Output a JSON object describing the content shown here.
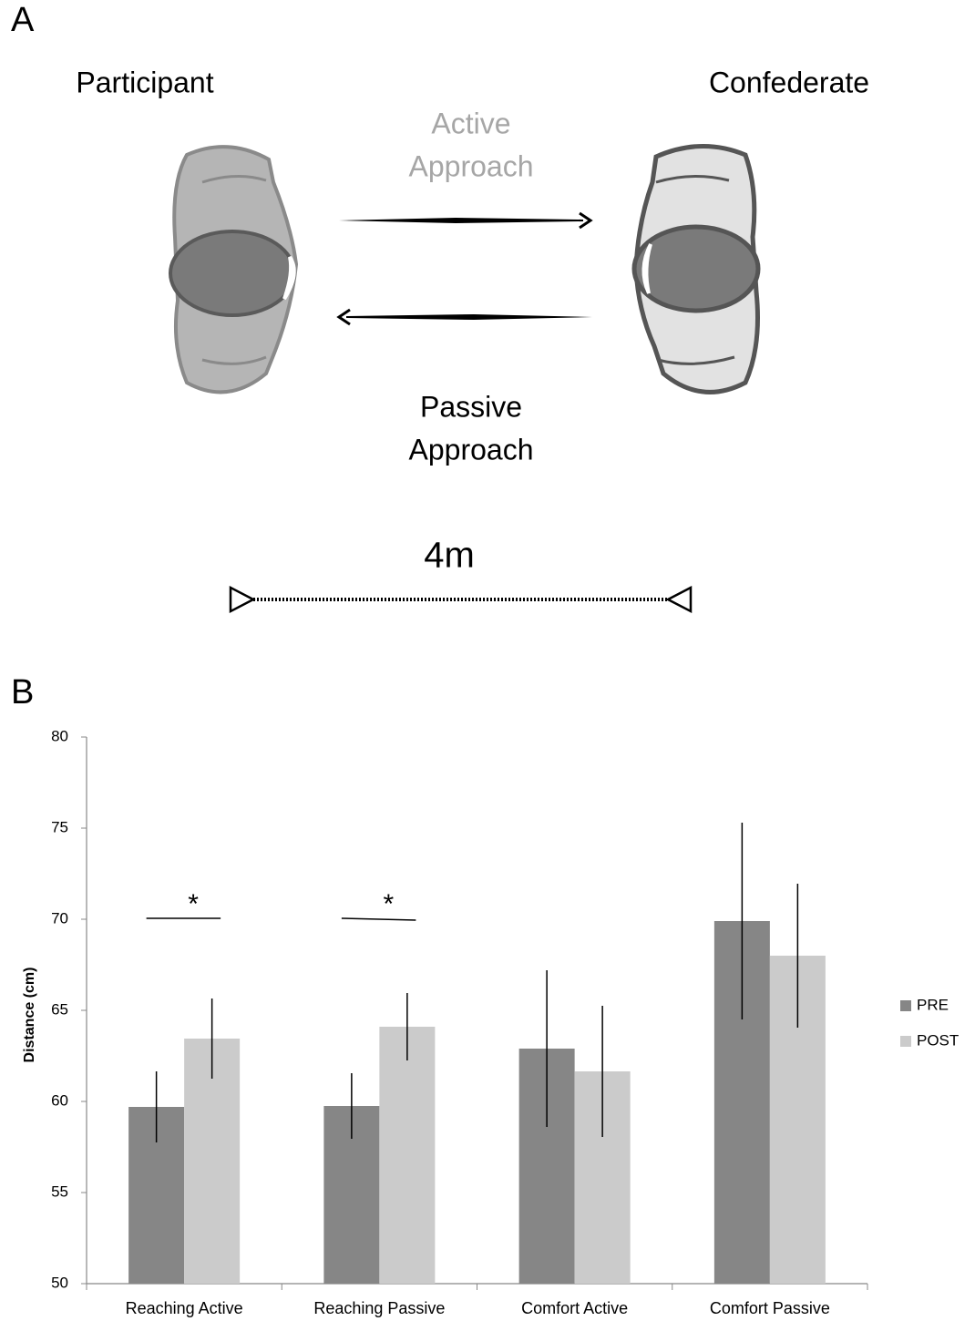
{
  "panel_a": {
    "label": "A",
    "left_label": "Participant",
    "right_label": "Confederate",
    "top_arrow_label": [
      "Active",
      "Approach"
    ],
    "bottom_arrow_label": [
      "Passive",
      "Approach"
    ],
    "distance_label": "4m"
  },
  "panel_b_label": "B",
  "chart_data": {
    "type": "bar",
    "ylabel": "Distance (cm)",
    "categories": [
      "Reaching Active",
      "Reaching Passive",
      "Comfort Active",
      "Comfort Passive"
    ],
    "series": [
      {
        "name": "PRE",
        "color": "#868686",
        "values": [
          59.7,
          59.75,
          62.9,
          69.9
        ],
        "errors": [
          1.95,
          1.8,
          4.3,
          5.4
        ]
      },
      {
        "name": "POST",
        "color": "#cbcbcb",
        "values": [
          63.45,
          64.1,
          61.65,
          68.0
        ],
        "errors": [
          2.2,
          1.85,
          3.6,
          3.95
        ]
      }
    ],
    "annotations": [
      "*",
      "*"
    ],
    "ylim": [
      50,
      80
    ],
    "yticks": [
      50,
      55,
      60,
      65,
      70,
      75,
      80
    ],
    "grid": false,
    "legend": "right"
  }
}
